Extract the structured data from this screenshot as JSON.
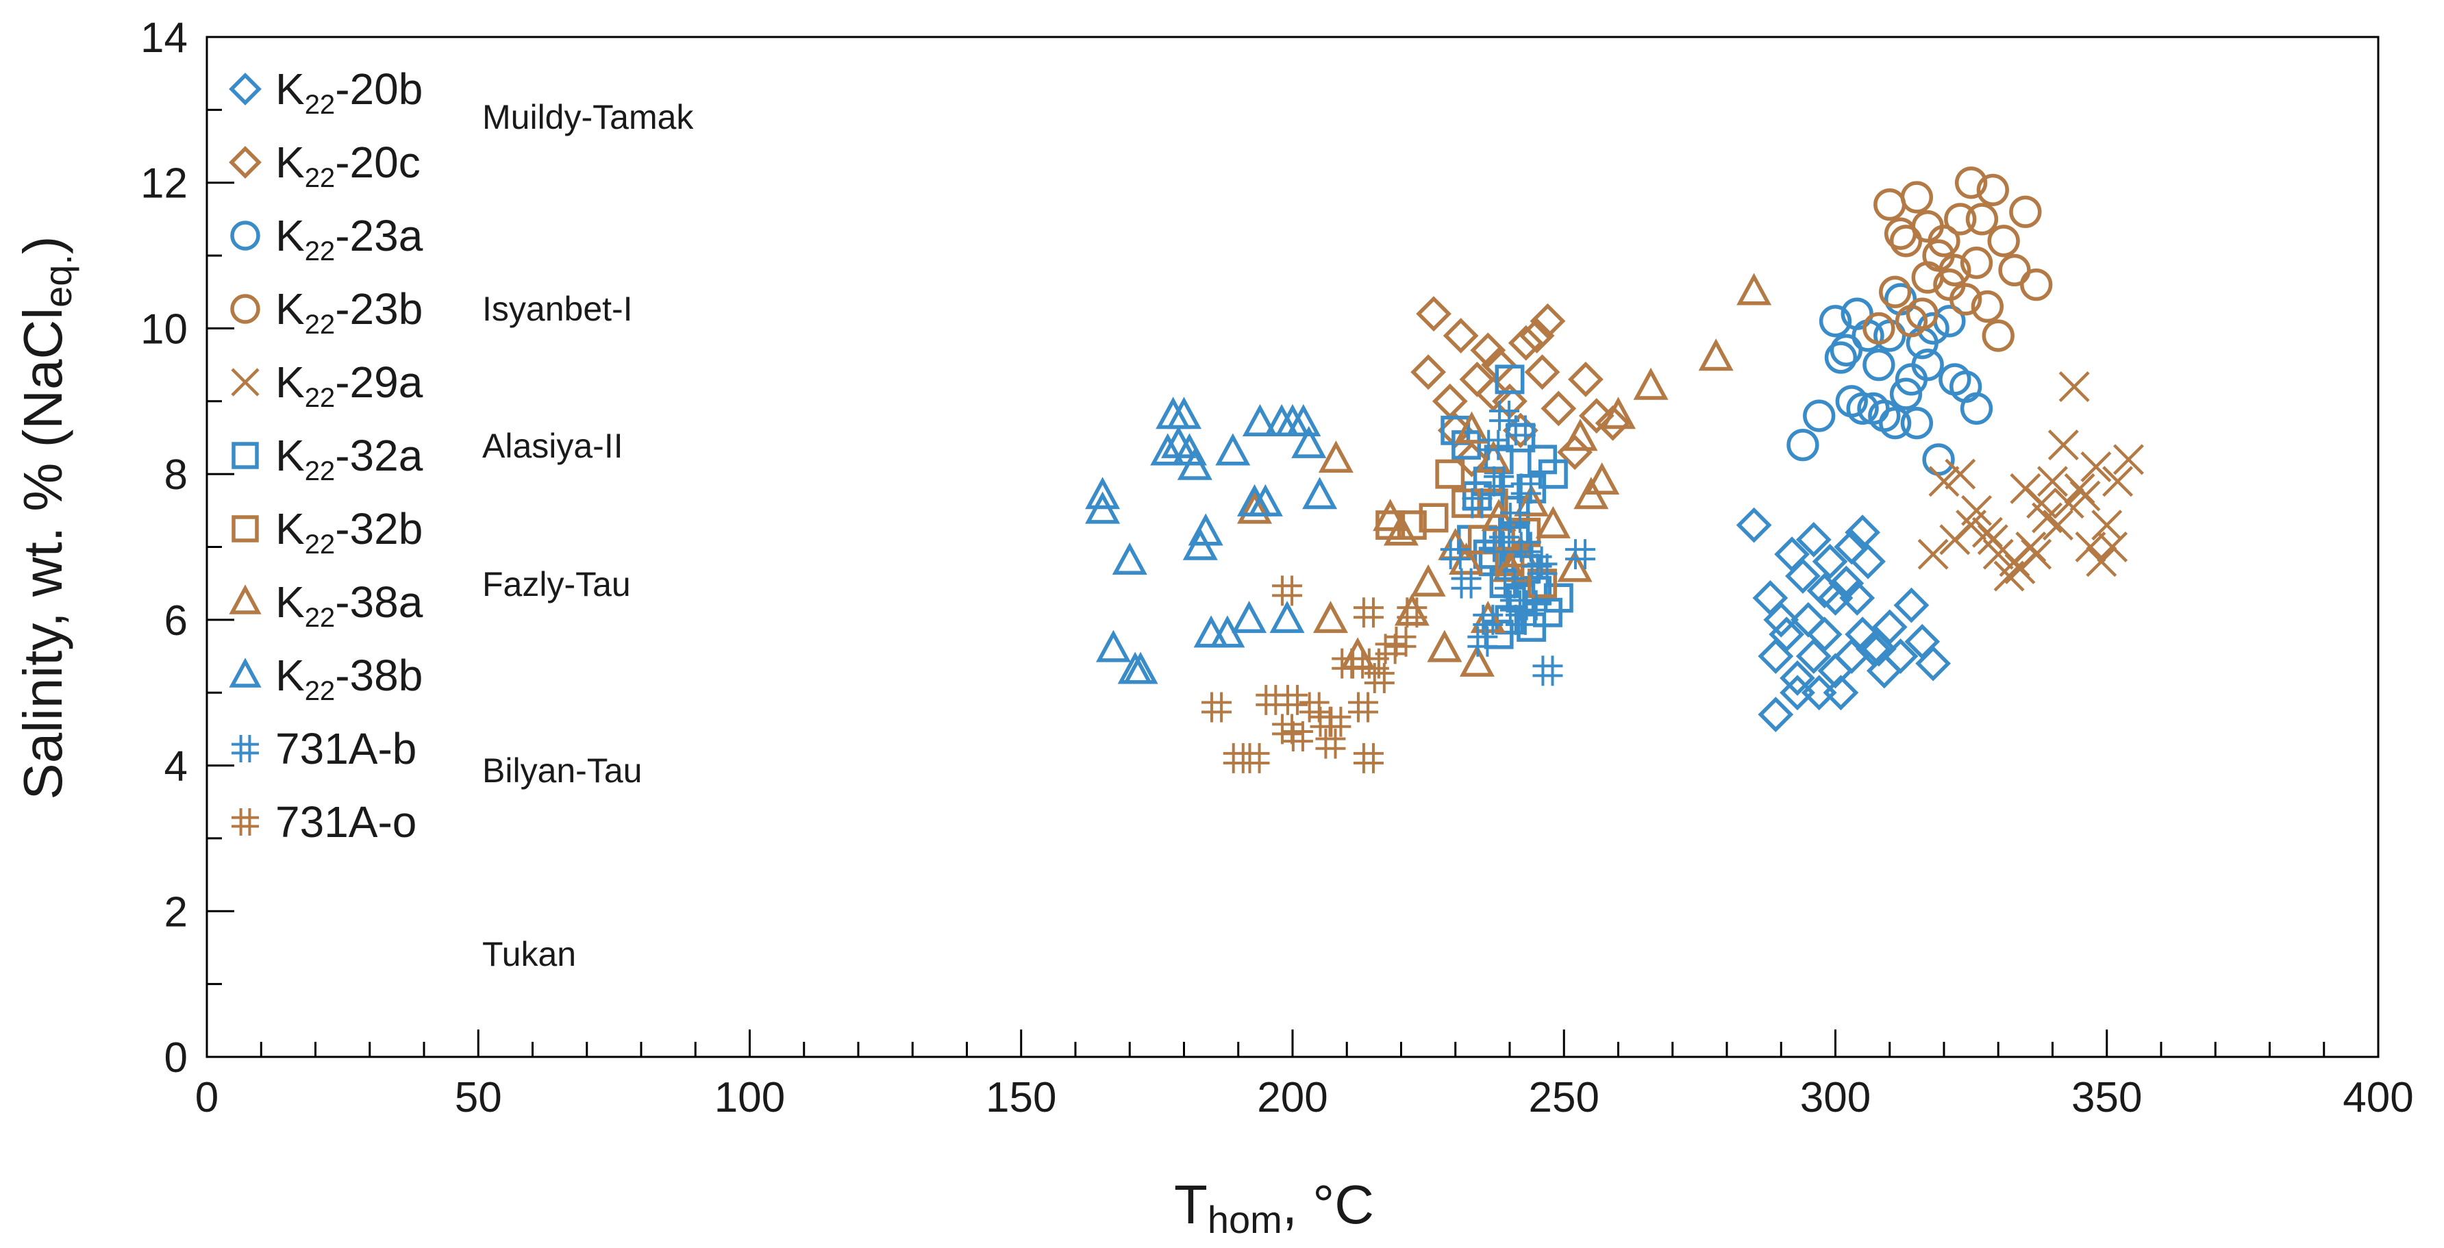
{
  "chart_data": {
    "type": "scatter",
    "title": "",
    "xlabel": {
      "main": "T",
      "sub": "hom",
      "suffix": ", °C"
    },
    "ylabel": {
      "main": "Salinity, wt. % (NaCl",
      "sub": "eq.",
      "suffix": ")"
    },
    "xlim": [
      0,
      400
    ],
    "ylim": [
      0,
      14
    ],
    "xticks": [
      0,
      50,
      100,
      150,
      200,
      250,
      300,
      350,
      400
    ],
    "yticks": [
      0,
      2,
      4,
      6,
      8,
      10,
      12,
      14
    ],
    "x_minor_step": 10,
    "y_minor_step": 1,
    "grid": false,
    "legend_position": "top-left, inside plot",
    "colors": {
      "blue": "#3a8cc9",
      "brown": "#b47a45"
    },
    "series": [
      {
        "name": "K22-20b",
        "label_main": "K",
        "label_sub": "22",
        "label_rest": "-20b",
        "marker": "diamond",
        "color": "#3a8cc9",
        "points": [
          [
            285,
            7.3
          ],
          [
            288,
            6.3
          ],
          [
            291,
            5.8
          ],
          [
            292,
            6.9
          ],
          [
            294,
            6.6
          ],
          [
            296,
            7.1
          ],
          [
            289,
            5.5
          ],
          [
            293,
            5.2
          ],
          [
            296,
            5.5
          ],
          [
            298,
            5.8
          ],
          [
            300,
            6.3
          ],
          [
            302,
            6.5
          ],
          [
            303,
            7.0
          ],
          [
            305,
            7.2
          ],
          [
            307,
            5.6
          ],
          [
            289,
            4.7
          ],
          [
            293,
            5.0
          ],
          [
            297,
            5.0
          ],
          [
            300,
            5.3
          ],
          [
            301,
            5.0
          ],
          [
            303,
            5.5
          ],
          [
            305,
            5.8
          ],
          [
            308,
            5.6
          ],
          [
            310,
            5.9
          ],
          [
            312,
            5.5
          ],
          [
            314,
            6.2
          ],
          [
            316,
            5.7
          ],
          [
            318,
            5.4
          ],
          [
            295,
            6.0
          ],
          [
            298,
            6.4
          ],
          [
            304,
            6.3
          ],
          [
            306,
            6.8
          ],
          [
            299,
            6.8
          ],
          [
            290,
            6.0
          ],
          [
            309,
            5.3
          ]
        ]
      },
      {
        "name": "K22-20c",
        "label_main": "K",
        "label_sub": "22",
        "label_rest": "-20c",
        "marker": "diamond",
        "color": "#b47a45",
        "points": [
          [
            226,
            10.2
          ],
          [
            225,
            9.4
          ],
          [
            229,
            9.0
          ],
          [
            231,
            9.9
          ],
          [
            234,
            9.3
          ],
          [
            236,
            9.7
          ],
          [
            238,
            9.5
          ],
          [
            240,
            9.0
          ],
          [
            242,
            8.6
          ],
          [
            245,
            9.9
          ],
          [
            247,
            10.1
          ],
          [
            249,
            8.9
          ],
          [
            252,
            8.3
          ],
          [
            254,
            9.3
          ],
          [
            256,
            8.8
          ],
          [
            259,
            8.7
          ],
          [
            230,
            8.6
          ],
          [
            233,
            8.2
          ],
          [
            246,
            9.4
          ],
          [
            243,
            9.8
          ],
          [
            237,
            9.1
          ]
        ]
      },
      {
        "name": "K22-23a",
        "label_main": "K",
        "label_sub": "22",
        "label_rest": "-23a",
        "marker": "circle",
        "color": "#3a8cc9",
        "points": [
          [
            300,
            10.1
          ],
          [
            302,
            9.7
          ],
          [
            304,
            10.2
          ],
          [
            306,
            9.9
          ],
          [
            308,
            9.5
          ],
          [
            310,
            9.9
          ],
          [
            312,
            10.4
          ],
          [
            314,
            9.3
          ],
          [
            316,
            9.8
          ],
          [
            318,
            10.0
          ],
          [
            305,
            8.9
          ],
          [
            309,
            8.8
          ],
          [
            311,
            8.7
          ],
          [
            313,
            9.1
          ],
          [
            315,
            8.7
          ],
          [
            317,
            9.5
          ],
          [
            319,
            8.2
          ],
          [
            322,
            9.3
          ],
          [
            324,
            9.2
          ],
          [
            326,
            8.9
          ],
          [
            294,
            8.4
          ],
          [
            297,
            8.8
          ],
          [
            303,
            9.0
          ],
          [
            301,
            9.6
          ],
          [
            307,
            8.9
          ],
          [
            321,
            10.1
          ]
        ]
      },
      {
        "name": "K22-23b",
        "label_main": "K",
        "label_sub": "22",
        "label_rest": "-23b",
        "marker": "circle",
        "color": "#b47a45",
        "points": [
          [
            310,
            11.7
          ],
          [
            313,
            11.2
          ],
          [
            315,
            11.8
          ],
          [
            317,
            11.4
          ],
          [
            319,
            11.0
          ],
          [
            321,
            10.6
          ],
          [
            323,
            11.5
          ],
          [
            325,
            12.0
          ],
          [
            327,
            11.5
          ],
          [
            329,
            11.9
          ],
          [
            331,
            11.2
          ],
          [
            333,
            10.8
          ],
          [
            335,
            11.6
          ],
          [
            337,
            10.6
          ],
          [
            308,
            10.0
          ],
          [
            311,
            10.5
          ],
          [
            314,
            10.1
          ],
          [
            317,
            10.7
          ],
          [
            320,
            11.2
          ],
          [
            322,
            10.8
          ],
          [
            324,
            10.4
          ],
          [
            326,
            10.9
          ],
          [
            328,
            10.3
          ],
          [
            330,
            9.9
          ],
          [
            312,
            11.3
          ],
          [
            316,
            10.2
          ]
        ]
      },
      {
        "name": "K22-29a",
        "label_main": "K",
        "label_sub": "22",
        "label_rest": "-29a",
        "marker": "cross",
        "color": "#b47a45",
        "points": [
          [
            320,
            7.9
          ],
          [
            323,
            8.0
          ],
          [
            326,
            7.5
          ],
          [
            328,
            7.2
          ],
          [
            330,
            6.9
          ],
          [
            332,
            6.6
          ],
          [
            334,
            6.7
          ],
          [
            336,
            7.0
          ],
          [
            338,
            7.6
          ],
          [
            340,
            7.9
          ],
          [
            342,
            8.4
          ],
          [
            344,
            9.2
          ],
          [
            346,
            7.7
          ],
          [
            348,
            8.1
          ],
          [
            350,
            7.3
          ],
          [
            352,
            7.9
          ],
          [
            354,
            8.2
          ],
          [
            325,
            7.3
          ],
          [
            329,
            7.1
          ],
          [
            333,
            6.8
          ],
          [
            337,
            6.9
          ],
          [
            341,
            7.3
          ],
          [
            343,
            7.6
          ],
          [
            345,
            7.8
          ],
          [
            347,
            7.0
          ],
          [
            349,
            6.8
          ],
          [
            351,
            7.0
          ],
          [
            318,
            6.9
          ],
          [
            322,
            7.1
          ],
          [
            339,
            7.4
          ],
          [
            335,
            7.8
          ]
        ]
      },
      {
        "name": "K22-32a",
        "label_main": "K",
        "label_sub": "22",
        "label_rest": "-32a",
        "marker": "square",
        "color": "#3a8cc9",
        "points": [
          [
            230,
            8.6
          ],
          [
            232,
            8.4
          ],
          [
            234,
            7.7
          ],
          [
            236,
            7.9
          ],
          [
            238,
            8.2
          ],
          [
            240,
            9.3
          ],
          [
            242,
            8.5
          ],
          [
            244,
            7.8
          ],
          [
            246,
            8.2
          ],
          [
            248,
            8.0
          ],
          [
            233,
            7.1
          ],
          [
            237,
            6.8
          ],
          [
            239,
            6.5
          ],
          [
            241,
            7.1
          ],
          [
            243,
            6.7
          ],
          [
            245,
            6.4
          ],
          [
            247,
            6.1
          ],
          [
            249,
            6.3
          ],
          [
            240,
            6.0
          ],
          [
            238,
            5.8
          ],
          [
            244,
            5.9
          ],
          [
            236,
            6.9
          ],
          [
            242,
            6.3
          ],
          [
            241,
            7.5
          ]
        ]
      },
      {
        "name": "K22-32b",
        "label_main": "K",
        "label_sub": "22",
        "label_rest": "-32b",
        "marker": "square",
        "color": "#b47a45",
        "points": [
          [
            218,
            7.3
          ],
          [
            222,
            7.3
          ],
          [
            226,
            7.4
          ],
          [
            229,
            8.0
          ],
          [
            232,
            7.6
          ],
          [
            235,
            7.1
          ],
          [
            237,
            7.6
          ],
          [
            240,
            6.8
          ],
          [
            243,
            7.2
          ],
          [
            246,
            6.5
          ]
        ]
      },
      {
        "name": "K22-38a",
        "label_main": "K",
        "label_sub": "22",
        "label_rest": "-38a",
        "marker": "triangle",
        "color": "#b47a45",
        "points": [
          [
            193,
            7.5
          ],
          [
            207,
            6.0
          ],
          [
            208,
            8.2
          ],
          [
            212,
            5.5
          ],
          [
            218,
            7.4
          ],
          [
            220,
            7.2
          ],
          [
            222,
            6.1
          ],
          [
            225,
            6.5
          ],
          [
            228,
            5.6
          ],
          [
            230,
            7.0
          ],
          [
            232,
            6.8
          ],
          [
            234,
            5.4
          ],
          [
            236,
            6.0
          ],
          [
            238,
            7.4
          ],
          [
            240,
            6.7
          ],
          [
            242,
            6.9
          ],
          [
            244,
            7.6
          ],
          [
            248,
            7.3
          ],
          [
            252,
            6.7
          ],
          [
            255,
            7.7
          ],
          [
            257,
            7.9
          ],
          [
            260,
            8.8
          ],
          [
            266,
            9.2
          ],
          [
            278,
            9.6
          ],
          [
            285,
            10.5
          ],
          [
            233,
            8.6
          ],
          [
            237,
            8.2
          ],
          [
            253,
            8.5
          ]
        ]
      },
      {
        "name": "K22-38b",
        "label_main": "K",
        "label_sub": "22",
        "label_rest": "-38b",
        "marker": "triangle",
        "color": "#3a8cc9",
        "points": [
          [
            165,
            7.7
          ],
          [
            165,
            7.5
          ],
          [
            167,
            5.6
          ],
          [
            170,
            6.8
          ],
          [
            171,
            5.3
          ],
          [
            172,
            5.3
          ],
          [
            177,
            8.3
          ],
          [
            178,
            8.8
          ],
          [
            179,
            8.4
          ],
          [
            180,
            8.8
          ],
          [
            181,
            8.3
          ],
          [
            182,
            8.1
          ],
          [
            183,
            7.0
          ],
          [
            184,
            7.2
          ],
          [
            185,
            5.8
          ],
          [
            188,
            5.8
          ],
          [
            189,
            8.3
          ],
          [
            192,
            6.0
          ],
          [
            193,
            7.6
          ],
          [
            194,
            8.7
          ],
          [
            195,
            7.6
          ],
          [
            198,
            8.7
          ],
          [
            199,
            6.0
          ],
          [
            200,
            8.7
          ],
          [
            202,
            8.7
          ],
          [
            203,
            8.4
          ],
          [
            205,
            7.7
          ]
        ]
      },
      {
        "name": "731A-b",
        "label_main": "731A-b",
        "label_sub": "",
        "label_rest": "",
        "marker": "hash",
        "color": "#3a8cc9",
        "points": [
          [
            230,
            6.9
          ],
          [
            232,
            6.5
          ],
          [
            234,
            7.6
          ],
          [
            236,
            6.0
          ],
          [
            237,
            8.4
          ],
          [
            238,
            7.0
          ],
          [
            239,
            8.8
          ],
          [
            240,
            6.5
          ],
          [
            241,
            7.4
          ],
          [
            242,
            8.6
          ],
          [
            243,
            7.0
          ],
          [
            244,
            6.2
          ],
          [
            245,
            6.8
          ],
          [
            246,
            6.7
          ],
          [
            247,
            5.3
          ],
          [
            253,
            6.9
          ],
          [
            238,
            7.9
          ],
          [
            241,
            6.2
          ],
          [
            243,
            7.8
          ],
          [
            235,
            5.7
          ],
          [
            239,
            7.2
          ],
          [
            242,
            6.0
          ]
        ]
      },
      {
        "name": "731A-o",
        "label_main": "731A-o",
        "label_sub": "",
        "label_rest": "",
        "marker": "hash",
        "color": "#b47a45",
        "points": [
          [
            186,
            4.8
          ],
          [
            190,
            4.1
          ],
          [
            193,
            4.1
          ],
          [
            196,
            4.9
          ],
          [
            199,
            6.4
          ],
          [
            199,
            4.5
          ],
          [
            200,
            4.9
          ],
          [
            201,
            4.4
          ],
          [
            204,
            4.8
          ],
          [
            206,
            4.6
          ],
          [
            207,
            4.3
          ],
          [
            208,
            4.6
          ],
          [
            210,
            5.4
          ],
          [
            212,
            5.4
          ],
          [
            213,
            4.8
          ],
          [
            214,
            6.1
          ],
          [
            214,
            4.1
          ],
          [
            215,
            5.4
          ],
          [
            216,
            5.2
          ],
          [
            218,
            5.6
          ],
          [
            220,
            5.7
          ],
          [
            222,
            6.1
          ]
        ]
      }
    ],
    "group_labels": [
      "Muildy-Tamak",
      "Isyanbet-I",
      "Alasiya-II",
      "Fazly-Tau",
      "Bilyan-Tau",
      "Tukan"
    ]
  }
}
